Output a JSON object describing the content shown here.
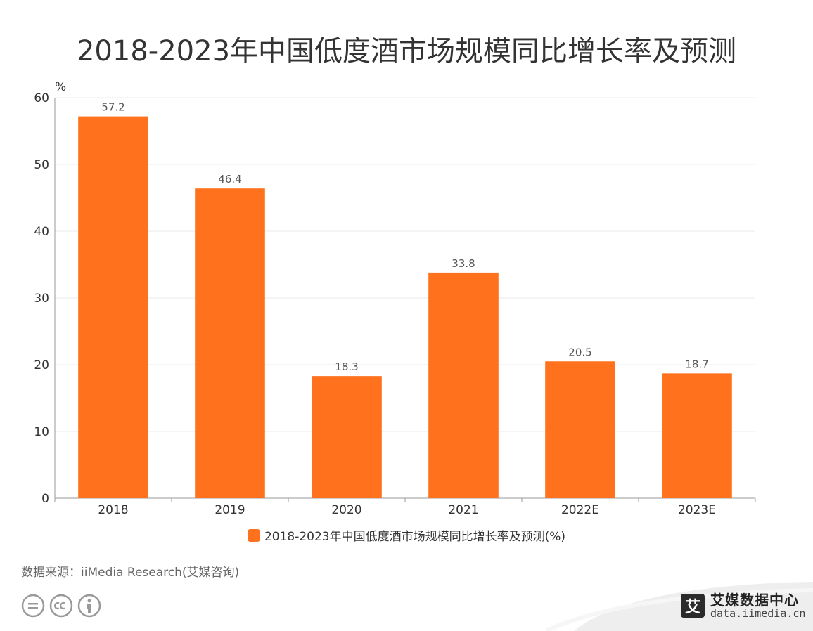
{
  "title": "2018-2023年中国低度酒市场规模同比增长率及预测",
  "chart_data": {
    "type": "bar",
    "title": "2018-2023年中国低度酒市场规模同比增长率及预测",
    "categories": [
      "2018",
      "2019",
      "2020",
      "2021",
      "2022E",
      "2023E"
    ],
    "values": [
      57.2,
      46.4,
      18.3,
      33.8,
      20.5,
      18.7
    ],
    "value_labels": [
      "57.2",
      "46.4",
      "18.3",
      "33.8",
      "20.5",
      "18.7"
    ],
    "ylabel": "%",
    "ylim": [
      0,
      60
    ],
    "yticks": [
      0,
      10,
      20,
      30,
      40,
      50,
      60
    ],
    "series_name": "2018-2023年中国低度酒市场规模同比增长率及预测(%)",
    "bar_color": "#ff711c",
    "grid": true,
    "legend_position": "bottom-center"
  },
  "legend": {
    "label": "2018-2023年中国低度酒市场规模同比增长率及预测(%)"
  },
  "source": "数据来源：iiMedia Research(艾媒咨询)",
  "brand": {
    "name": "艾媒数据中心",
    "url": "data.iimedia.cn",
    "logo_char": "艾"
  },
  "colors": {
    "bar": "#ff711c",
    "grid": "#ebebeb",
    "axis": "#999999",
    "text": "#333333"
  }
}
